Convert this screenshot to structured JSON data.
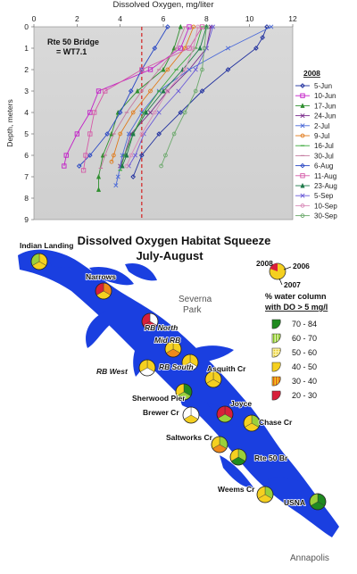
{
  "chart_data": {
    "type": "line",
    "title": "Dissolved Oxygen, mg/liter",
    "xlabel": "Dissolved Oxygen, mg/liter",
    "ylabel": "Depth, meters",
    "xlim": [
      0,
      12
    ],
    "ylim": [
      0,
      9
    ],
    "x_ticks": [
      0,
      2,
      4,
      6,
      8,
      10,
      12
    ],
    "y_ticks": [
      0,
      1,
      2,
      3,
      4,
      5,
      6,
      7,
      8,
      9
    ],
    "y_inverted": true,
    "x_axis_position": "top",
    "grid": false,
    "legend": {
      "title": "2008",
      "placement": "right"
    },
    "annotation": [
      "Rte 50 Bridge",
      "= WT7.1"
    ],
    "reference_line": {
      "x": 5,
      "style": "dashed",
      "color": "#d42020"
    },
    "series": [
      {
        "name": "5-Jun",
        "color": "#1f2f9e",
        "marker": "diamond",
        "points": [
          [
            10.8,
            0
          ],
          [
            10.6,
            0.5
          ],
          [
            10.3,
            1
          ],
          [
            9.0,
            2
          ],
          [
            7.8,
            3
          ],
          [
            6.8,
            4
          ],
          [
            5.8,
            5
          ],
          [
            5.0,
            6
          ],
          [
            4.6,
            7
          ]
        ]
      },
      {
        "name": "10-Jun",
        "color": "#c21fc7",
        "marker": "square",
        "points": [
          [
            7.2,
            0
          ],
          [
            6.8,
            1
          ],
          [
            5.4,
            2
          ],
          [
            3.0,
            3
          ],
          [
            2.6,
            4
          ],
          [
            2.0,
            5
          ],
          [
            1.5,
            6
          ],
          [
            1.4,
            6.5
          ]
        ]
      },
      {
        "name": "17-Jun",
        "color": "#2f8f2f",
        "marker": "triangle",
        "points": [
          [
            6.8,
            0
          ],
          [
            6.5,
            1
          ],
          [
            6.0,
            2
          ],
          [
            4.8,
            3
          ],
          [
            3.9,
            4
          ],
          [
            3.6,
            5
          ],
          [
            3.2,
            6
          ],
          [
            3.0,
            7
          ],
          [
            3.0,
            7.6
          ]
        ]
      },
      {
        "name": "24-Jun",
        "color": "#7a2a8a",
        "marker": "cross",
        "points": [
          [
            8.2,
            0
          ],
          [
            8.0,
            1
          ],
          [
            7.2,
            2
          ],
          [
            6.2,
            3
          ],
          [
            5.4,
            4
          ],
          [
            4.5,
            5
          ],
          [
            4.2,
            6
          ],
          [
            4.0,
            6.5
          ]
        ]
      },
      {
        "name": "2-Jul",
        "color": "#4b6ad8",
        "marker": "star",
        "points": [
          [
            11.0,
            0
          ],
          [
            9.0,
            1
          ],
          [
            7.2,
            2
          ],
          [
            5.8,
            3
          ],
          [
            5.0,
            4
          ],
          [
            4.4,
            5
          ],
          [
            4.1,
            6
          ],
          [
            3.9,
            7
          ],
          [
            3.8,
            7.4
          ]
        ]
      },
      {
        "name": "9-Jul",
        "color": "#e07a1a",
        "marker": "circle",
        "points": [
          [
            7.4,
            0
          ],
          [
            7.0,
            1
          ],
          [
            6.2,
            2
          ],
          [
            5.4,
            3
          ],
          [
            4.6,
            4
          ],
          [
            4.0,
            5
          ],
          [
            3.7,
            6
          ],
          [
            3.6,
            6.3
          ]
        ]
      },
      {
        "name": "16-Jul",
        "color": "#3aa83a",
        "marker": "dash",
        "points": [
          [
            7.8,
            0
          ],
          [
            7.5,
            1
          ],
          [
            6.6,
            2
          ],
          [
            5.8,
            3
          ],
          [
            5.1,
            4
          ],
          [
            4.6,
            5
          ],
          [
            4.2,
            6
          ],
          [
            4.0,
            6.7
          ]
        ]
      },
      {
        "name": "30-Jul",
        "color": "#c47aa0",
        "marker": "dash",
        "points": [
          [
            7.0,
            0
          ],
          [
            6.6,
            1
          ],
          [
            5.8,
            2
          ],
          [
            5.0,
            3
          ],
          [
            4.3,
            4
          ],
          [
            3.7,
            5
          ],
          [
            3.3,
            6
          ],
          [
            3.1,
            6.6
          ]
        ]
      },
      {
        "name": "6-Aug",
        "color": "#2a48c4",
        "marker": "diamond",
        "points": [
          [
            6.2,
            0
          ],
          [
            5.6,
            1
          ],
          [
            5.0,
            2
          ],
          [
            4.5,
            3
          ],
          [
            4.0,
            4
          ],
          [
            3.4,
            5
          ],
          [
            2.6,
            6
          ],
          [
            2.1,
            6.5
          ]
        ]
      },
      {
        "name": "11-Aug",
        "color": "#d45aa8",
        "marker": "square",
        "points": [
          [
            7.8,
            0
          ],
          [
            7.2,
            1
          ],
          [
            5.0,
            2
          ],
          [
            3.3,
            3
          ],
          [
            2.8,
            4
          ],
          [
            2.6,
            5
          ],
          [
            2.4,
            6
          ],
          [
            2.3,
            6.7
          ]
        ]
      },
      {
        "name": "23-Aug",
        "color": "#1f7a4a",
        "marker": "triangle",
        "points": [
          [
            8.0,
            0
          ],
          [
            7.7,
            1
          ],
          [
            6.9,
            2
          ],
          [
            6.0,
            3
          ],
          [
            5.2,
            4
          ],
          [
            4.6,
            5
          ],
          [
            4.3,
            6
          ],
          [
            4.1,
            6.5
          ]
        ]
      },
      {
        "name": "5-Sep",
        "color": "#6a5ad8",
        "marker": "cross",
        "points": [
          [
            8.3,
            0
          ],
          [
            8.0,
            1
          ],
          [
            7.5,
            2
          ],
          [
            6.7,
            3
          ],
          [
            5.8,
            4
          ],
          [
            5.1,
            5
          ],
          [
            4.7,
            6
          ],
          [
            4.4,
            6.5
          ]
        ]
      },
      {
        "name": "10-Sep",
        "color": "#d88ab8",
        "marker": "circle",
        "points": [
          [
            7.6,
            0
          ],
          [
            7.4,
            1
          ],
          [
            7.0,
            2
          ],
          [
            6.2,
            3
          ],
          [
            5.6,
            4
          ],
          [
            5.0,
            5
          ],
          [
            4.5,
            6
          ],
          [
            4.3,
            6.5
          ]
        ]
      },
      {
        "name": "30-Sep",
        "color": "#6aa86a",
        "marker": "circle",
        "points": [
          [
            8.0,
            0
          ],
          [
            7.9,
            1
          ],
          [
            7.8,
            2
          ],
          [
            7.5,
            3
          ],
          [
            7.0,
            4
          ],
          [
            6.5,
            5
          ],
          [
            6.1,
            6
          ],
          [
            5.9,
            6.5
          ]
        ]
      }
    ]
  },
  "map": {
    "title_line1": "Dissolved Oxygen Habitat Squeeze",
    "title_line2": "July-August",
    "water_color": "#1a3fe0",
    "legend": {
      "header_line1": "% water column",
      "header_line2": "with DO > 5 mg/l",
      "entries": [
        {
          "label": "70 - 84",
          "color": "#1f8a1f",
          "pattern": "solid"
        },
        {
          "label": "60 - 70",
          "color": "#9ad03a",
          "pattern": "striped"
        },
        {
          "label": "50 - 60",
          "color": "#f2d21a",
          "pattern": "dotted"
        },
        {
          "label": "40 - 50",
          "color": "#f5d020",
          "pattern": "solid"
        },
        {
          "label": "30 - 40",
          "color": "#f08a1a",
          "pattern": "striped"
        },
        {
          "label": "20 - 30",
          "color": "#d81f3a",
          "pattern": "solid"
        }
      ]
    },
    "year_key": {
      "year_2008": "2008",
      "year_2006": "2006",
      "year_2007": "2007"
    },
    "place_labels": {
      "severna_park": "Severna\nPark",
      "annapolis": "Annapolis"
    },
    "stations": [
      {
        "label": "Indian Landing",
        "italic": false,
        "colors": [
          "#f5d020",
          "#f5d020",
          "#9ad03a"
        ]
      },
      {
        "label": "Narrows",
        "italic": false,
        "colors": [
          "#f08a1a",
          "#f5d020",
          "#d81f3a"
        ]
      },
      {
        "label": "RB North",
        "italic": true,
        "colors": [
          "#ffffff",
          "#d81f3a",
          "#d81f3a"
        ]
      },
      {
        "label": "Mid RB",
        "italic": true,
        "colors": [
          "#f5d020",
          "#f08a1a",
          "#f5d020"
        ]
      },
      {
        "label": "RB West",
        "italic": true,
        "colors": [
          "#f5d020",
          "#ffffff",
          "#f5d020"
        ]
      },
      {
        "label": "RB South",
        "italic": true,
        "colors": [
          "#f5d020",
          "#ffffff",
          "#f5d020"
        ]
      },
      {
        "label": "Asquith Cr",
        "italic": false,
        "colors": [
          "#f5d020",
          "#f5d020",
          "#f5d020"
        ]
      },
      {
        "label": "Sherwood Pier",
        "italic": false,
        "colors": [
          "#1f8a1f",
          "#9ad03a",
          "#f5d020"
        ]
      },
      {
        "label": "Brewer Cr",
        "italic": false,
        "colors": [
          "#ffffff",
          "#f5d020",
          "#ffffff"
        ]
      },
      {
        "label": "Joyce",
        "italic": false,
        "colors": [
          "#d81f3a",
          "#9ad03a",
          "#d81f3a"
        ]
      },
      {
        "label": "Chase Cr",
        "italic": false,
        "colors": [
          "#9ad03a",
          "#f5d020",
          "#f5d020"
        ]
      },
      {
        "label": "Saltworks Cr",
        "italic": false,
        "colors": [
          "#9ad03a",
          "#f08a1a",
          "#f5d020"
        ]
      },
      {
        "label": "Rte 50 Br",
        "italic": false,
        "colors": [
          "#9ad03a",
          "#1f8a1f",
          "#f5d020"
        ]
      },
      {
        "label": "Weems Cr",
        "italic": false,
        "colors": [
          "#9ad03a",
          "#f5d020",
          "#f5d020"
        ]
      },
      {
        "label": "USNA",
        "italic": false,
        "colors": [
          "#1f8a1f",
          "#1f8a1f",
          "#9ad03a"
        ]
      }
    ]
  }
}
